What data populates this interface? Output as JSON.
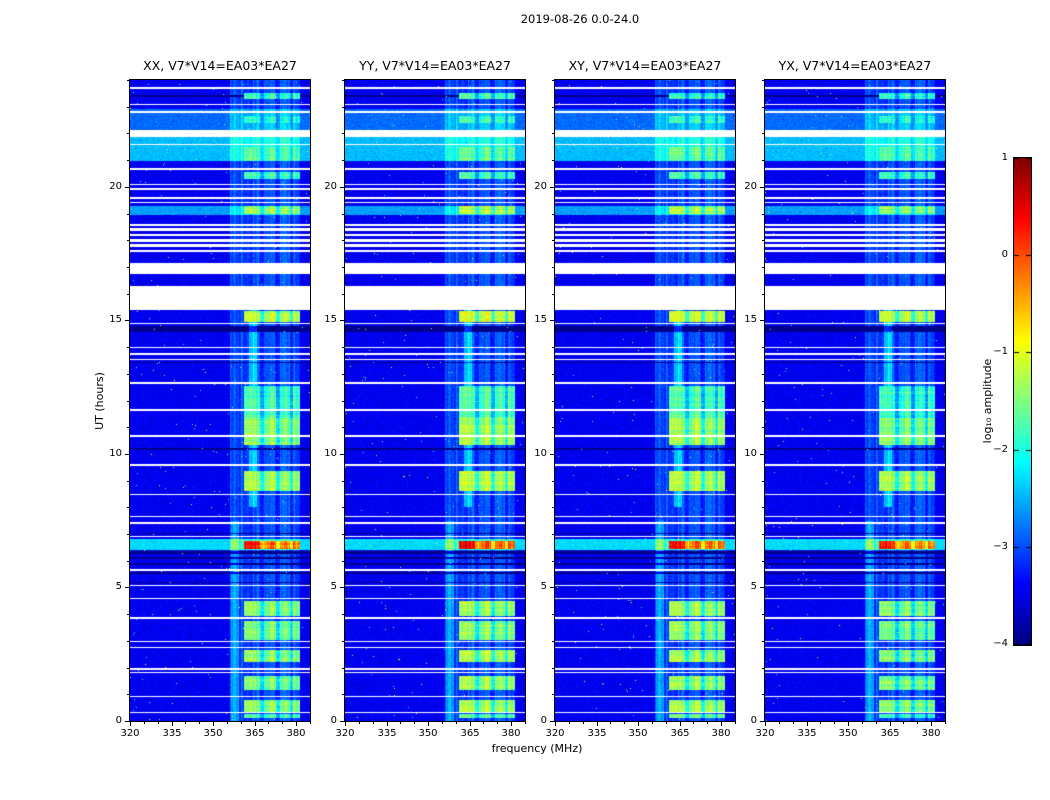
{
  "title": "2019-08-26 0.0-24.0",
  "axes": {
    "x_label": "frequency (MHz)",
    "y_label": "UT (hours)",
    "x_ticks": [
      320,
      335,
      350,
      365,
      380
    ],
    "y_ticks": [
      0,
      5,
      10,
      15,
      20
    ],
    "x_minor_step": 5,
    "y_minor_step": 1,
    "x_range": [
      320,
      385
    ],
    "y_range": [
      0,
      24
    ]
  },
  "colorbar": {
    "label": "log₁₀ amplitude",
    "ticks": [
      1,
      0,
      -1,
      -2,
      -3,
      -4
    ],
    "range": [
      -4,
      1
    ],
    "colormap": "jet"
  },
  "chart_data": {
    "type": "heatmap",
    "title": "2019-08-26 0.0-24.0",
    "xlabel": "frequency (MHz)",
    "ylabel": "UT (hours)",
    "x_range": [
      320,
      385
    ],
    "y_range": [
      0,
      24
    ],
    "color_range": [
      -4,
      1
    ],
    "colormap": "jet",
    "colorbar_label": "log₁₀ amplitude",
    "panels": [
      {
        "label": "XX, V7*V14=EA03*EA27",
        "pol": "xx"
      },
      {
        "label": "YY, V7*V14=EA03*EA27",
        "pol": "yy"
      },
      {
        "label": "XY, V7*V14=EA03*EA27",
        "pol": "xy"
      },
      {
        "label": "YX, V7*V14=EA03*EA27",
        "pol": "yx"
      }
    ],
    "background_level": -3.45,
    "noise_sigma": 0.2,
    "rfi_band_mhz": [
      356,
      381.5
    ],
    "strong_band_mhz": [
      361,
      381.5
    ],
    "band_notch_mhz": [
      [
        366.8,
        368.4
      ],
      [
        372.8,
        374.2
      ],
      [
        377.8,
        378.9
      ]
    ],
    "persistent_columns": [
      {
        "freq_mhz": [
          363,
          366
        ],
        "hours": [
          8,
          15.4
        ],
        "boost": 0.75
      },
      {
        "freq_mhz": [
          356.5,
          359.5
        ],
        "hours": [
          0,
          7.5
        ],
        "boost": 0.45
      }
    ],
    "time_gaps_hours": [
      [
        23.66,
        23.72
      ],
      [
        23.05,
        23.11
      ],
      [
        22.78,
        22.84
      ],
      [
        21.88,
        22.12
      ],
      [
        21.55,
        21.61
      ],
      [
        20.62,
        20.7
      ],
      [
        20.05,
        20.12
      ],
      [
        19.9,
        19.96
      ],
      [
        19.55,
        19.62
      ],
      [
        19.38,
        19.44
      ],
      [
        18.55,
        18.62
      ],
      [
        18.35,
        18.45
      ],
      [
        18.15,
        18.25
      ],
      [
        17.95,
        18.05
      ],
      [
        17.75,
        17.85
      ],
      [
        17.55,
        17.65
      ],
      [
        16.75,
        17.15
      ],
      [
        15.4,
        16.3
      ],
      [
        14.85,
        14.91
      ],
      [
        13.95,
        14.02
      ],
      [
        13.72,
        13.78
      ],
      [
        13.5,
        13.56
      ],
      [
        12.62,
        12.68
      ],
      [
        11.62,
        11.68
      ],
      [
        10.65,
        10.71
      ],
      [
        9.55,
        9.61
      ],
      [
        8.45,
        8.51
      ],
      [
        7.62,
        7.68
      ],
      [
        7.38,
        7.44
      ],
      [
        6.88,
        6.94
      ],
      [
        5.62,
        5.68
      ],
      [
        5.05,
        5.11
      ],
      [
        4.55,
        4.61
      ],
      [
        3.82,
        3.88
      ],
      [
        2.95,
        3.01
      ],
      [
        2.72,
        2.78
      ],
      [
        1.92,
        1.98
      ],
      [
        1.78,
        1.84
      ],
      [
        0.88,
        0.94
      ],
      [
        0.3,
        0.34
      ]
    ],
    "bright_rows": [
      [
        22.12,
        22.9,
        -2.85
      ],
      [
        20.95,
        21.85,
        -2.45
      ],
      [
        18.95,
        19.3,
        -2.6
      ],
      [
        6.4,
        6.8,
        -2.3
      ]
    ],
    "dark_rows": [
      [
        23.35,
        23.42
      ],
      [
        14.55,
        14.8
      ],
      [
        13.4,
        13.45
      ],
      [
        10.15,
        10.22
      ],
      [
        7.0,
        7.05
      ],
      [
        6.25,
        6.35
      ],
      [
        6.05,
        6.15
      ],
      [
        5.85,
        5.92
      ],
      [
        5.5,
        5.57
      ],
      [
        5.15,
        5.22
      ]
    ],
    "rfi_blobs": [
      [
        23.28,
        23.5,
        -2.1
      ],
      [
        22.4,
        22.65,
        -2.1
      ],
      [
        20.95,
        21.5,
        -1.9
      ],
      [
        20.3,
        20.55,
        -2.0
      ],
      [
        18.98,
        19.3,
        -1.55
      ],
      [
        14.95,
        15.35,
        -1.35
      ],
      [
        11.35,
        12.55,
        -2.0
      ],
      [
        10.35,
        11.35,
        -1.6
      ],
      [
        8.6,
        9.35,
        -1.5
      ],
      [
        6.45,
        6.75,
        -0.35
      ],
      [
        3.95,
        4.5,
        -1.6
      ],
      [
        3.05,
        3.75,
        -1.7
      ],
      [
        2.2,
        2.65,
        -1.6
      ],
      [
        1.15,
        1.7,
        -1.65
      ],
      [
        0.35,
        0.8,
        -1.6
      ],
      [
        0.1,
        0.28,
        -1.9
      ]
    ],
    "panel_level_adjust": [
      0,
      0.12,
      0.08,
      -0.05
    ]
  }
}
